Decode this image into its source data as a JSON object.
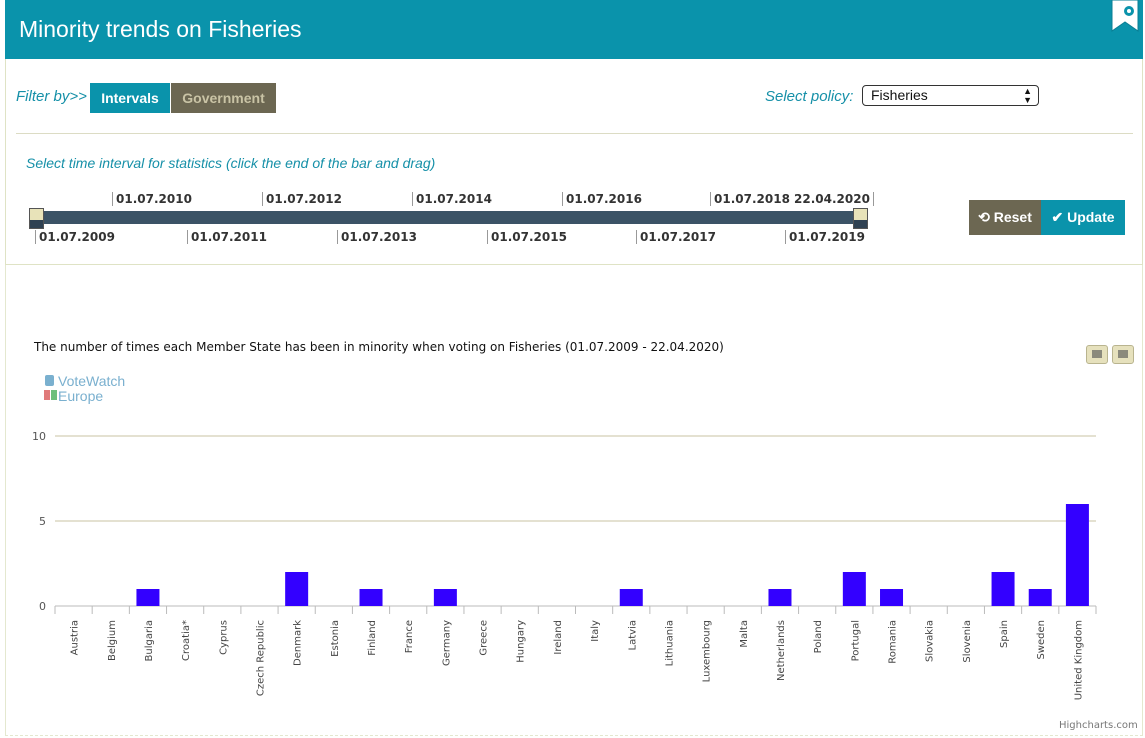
{
  "header": {
    "title": "Minority trends on Fisheries"
  },
  "filter": {
    "label": "Filter by>>",
    "intervals_label": "Intervals",
    "government_label": "Government",
    "policy_label": "Select policy:",
    "policy_value": "Fisheries",
    "interval_hint": "Select time interval for statistics (click the end of the bar and drag)"
  },
  "slider": {
    "top_ticks": [
      "01.07.2010",
      "01.07.2012",
      "01.07.2014",
      "01.07.2016",
      "01.07.2018",
      "22.04.2020"
    ],
    "bottom_ticks": [
      "01.07.2009",
      "01.07.2011",
      "01.07.2013",
      "01.07.2015",
      "01.07.2017",
      "01.07.2019"
    ],
    "start": "01.07.2009",
    "end": "22.04.2020"
  },
  "buttons": {
    "reset": "Reset",
    "update": "Update"
  },
  "logo": {
    "line1": "VoteWatch",
    "line2": "Europe"
  },
  "credit": "Highcharts.com",
  "colors": {
    "accent": "#0a93ab",
    "bar": "#3300ff",
    "secondary": "#6c6752"
  },
  "chart_data": {
    "type": "bar",
    "title": "The number of times each Member State has been in minority when voting on Fisheries (01.07.2009 - 22.04.2020)",
    "categories": [
      "Austria",
      "Belgium",
      "Bulgaria",
      "Croatia*",
      "Cyprus",
      "Czech Republic",
      "Denmark",
      "Estonia",
      "Finland",
      "France",
      "Germany",
      "Greece",
      "Hungary",
      "Ireland",
      "Italy",
      "Latvia",
      "Lithuania",
      "Luxembourg",
      "Malta",
      "Netherlands",
      "Poland",
      "Portugal",
      "Romania",
      "Slovakia",
      "Slovenia",
      "Spain",
      "Sweden",
      "United Kingdom"
    ],
    "values": [
      0,
      0,
      1,
      0,
      0,
      0,
      2,
      0,
      1,
      0,
      1,
      0,
      0,
      0,
      0,
      1,
      0,
      0,
      0,
      1,
      0,
      2,
      1,
      0,
      0,
      2,
      1,
      6
    ],
    "yticks": [
      0,
      5,
      10
    ],
    "ylim": [
      0,
      10
    ],
    "grid": true,
    "legend": "none"
  }
}
